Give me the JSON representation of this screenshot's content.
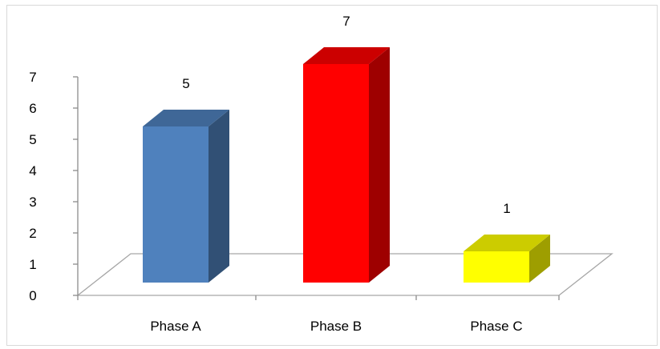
{
  "chart_data": {
    "type": "bar",
    "title": "",
    "xlabel": "",
    "ylabel": "",
    "categories": [
      "Phase A",
      "Phase B",
      "Phase C"
    ],
    "values": [
      5,
      7,
      1
    ],
    "colors": [
      "#4f81bd",
      "#ff0000",
      "#ffff00"
    ],
    "ylim": [
      0,
      7
    ],
    "yticks": [
      0,
      1,
      2,
      3,
      4,
      5,
      6,
      7
    ],
    "grid": false,
    "legend": "none",
    "style": "3d-column"
  }
}
